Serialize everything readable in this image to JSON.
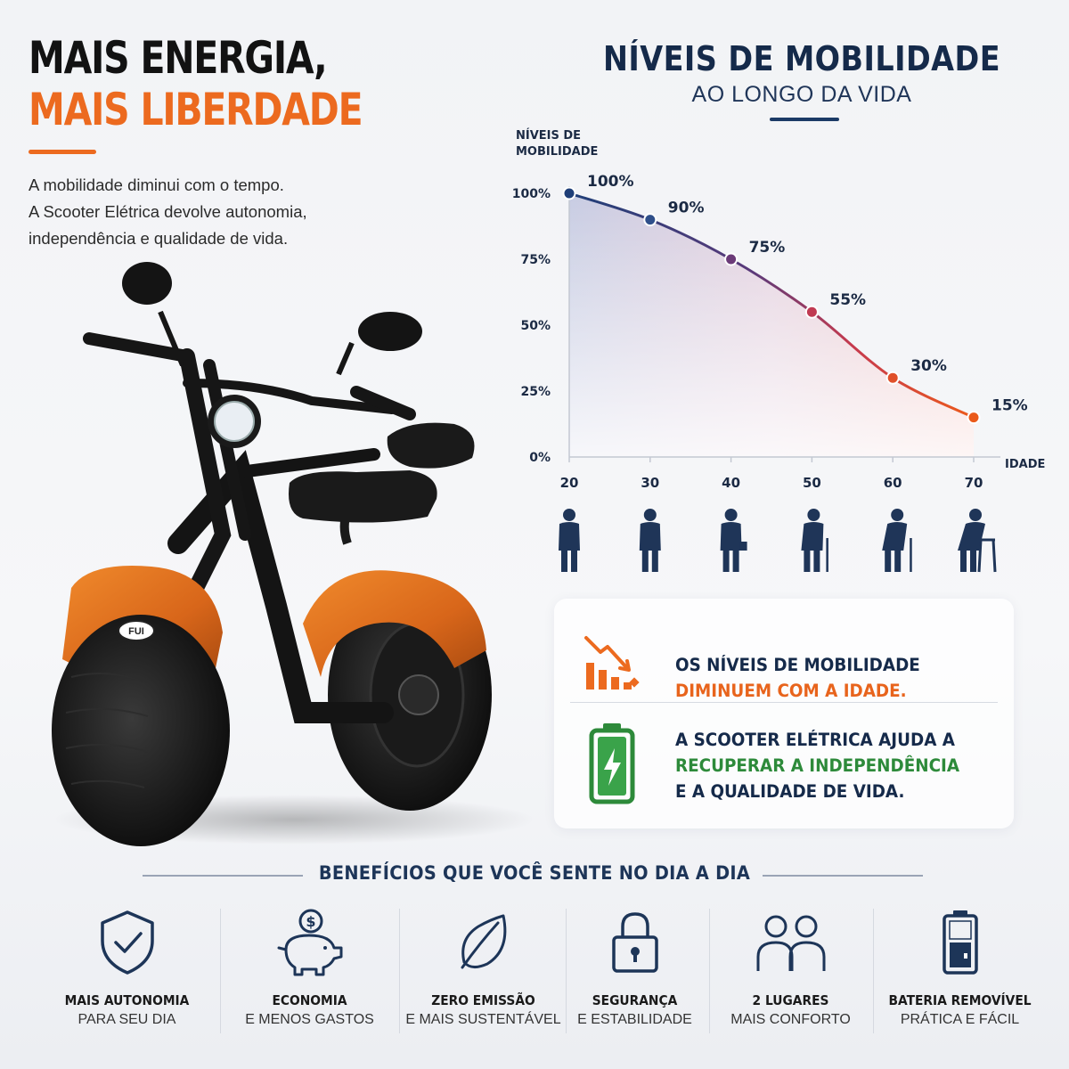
{
  "header": {
    "line1": "MAIS ENERGIA,",
    "line2": "MAIS LIBERDADE",
    "intro": [
      "A mobilidade diminui com o tempo.",
      "A Scooter Elétrica devolve autonomia,",
      "independência e qualidade de vida."
    ]
  },
  "scooter": {
    "badge": "FUI"
  },
  "chart_data": {
    "type": "line",
    "title": "NÍVEIS DE MOBILIDADE",
    "subtitle": "AO LONGO DA VIDA",
    "ylabel": [
      "NÍVEIS DE",
      "MOBILIDADE"
    ],
    "xlabel": "IDADE",
    "x": [
      20,
      30,
      40,
      50,
      60,
      70
    ],
    "values": [
      100,
      90,
      75,
      55,
      30,
      15
    ],
    "data_labels": [
      "100%",
      "90%",
      "75%",
      "55%",
      "30%",
      "15%"
    ],
    "yticks": [
      "0%",
      "25%",
      "50%",
      "75%",
      "100%"
    ],
    "ytick_values": [
      0,
      25,
      50,
      75,
      100
    ],
    "ylim": [
      0,
      100
    ],
    "xlim": [
      20,
      70
    ],
    "line_colors": [
      "#1f3f78",
      "#2f4f8a",
      "#6b3a78",
      "#c03a52",
      "#e0502a",
      "#ea5a1a"
    ],
    "figures": [
      "young-adult-icon",
      "adult-icon",
      "businessman-icon",
      "elder-cane-icon",
      "elder-cane-bent-icon",
      "elder-walker-icon"
    ]
  },
  "info": {
    "row1_line1": "OS NÍVEIS DE MOBILIDADE",
    "row1_line2": "DIMINUEM COM A IDADE.",
    "row2_line1": "A SCOOTER ELÉTRICA AJUDA A",
    "row2_line2": "RECUPERAR A INDEPENDÊNCIA",
    "row2_line3": "E A QUALIDADE DE VIDA."
  },
  "benefits": {
    "title": "BENEFÍCIOS QUE VOCÊ SENTE NO DIA A DIA",
    "items": [
      {
        "icon": "shield-check-icon",
        "title": "MAIS AUTONOMIA",
        "sub": "PARA SEU DIA"
      },
      {
        "icon": "piggy-bank-icon",
        "title": "ECONOMIA",
        "sub": "E MENOS GASTOS"
      },
      {
        "icon": "leaf-icon",
        "title": "ZERO EMISSÃO",
        "sub": "E MAIS SUSTENTÁVEL"
      },
      {
        "icon": "padlock-icon",
        "title": "SEGURANÇA",
        "sub": "E ESTABILIDADE"
      },
      {
        "icon": "two-people-icon",
        "title": "2 LUGARES",
        "sub": "MAIS CONFORTO"
      },
      {
        "icon": "battery-icon",
        "title": "BATERIA REMOVÍVEL",
        "sub": "PRÁTICA E FÁCIL"
      }
    ]
  },
  "colors": {
    "accent": "#ec6a1f",
    "navy": "#152a4a",
    "green": "#2d8a3a"
  }
}
